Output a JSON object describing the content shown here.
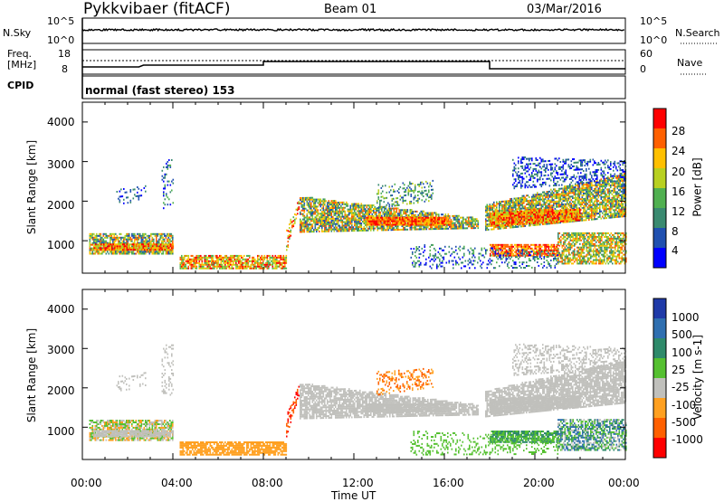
{
  "header": {
    "radar": "Pykkvibaer (fitACF)",
    "beam": "Beam 01",
    "date": "03/Mar/2016"
  },
  "noise_panel": {
    "left_label": "N.Sky",
    "left_ticks": [
      "10^5",
      "10^0"
    ],
    "right_label": "N.Search",
    "right_ticks": [
      "10^5",
      "10^0"
    ]
  },
  "freq_panel": {
    "left_label_1": "Freq.",
    "left_label_2": "[MHz]",
    "left_ticks": [
      "18",
      "8"
    ],
    "right_label": "Nave",
    "right_ticks": [
      "60",
      "0"
    ],
    "cpid_label": "CPID",
    "cpid_text": "normal (fast stereo) 153"
  },
  "chart_data": [
    {
      "type": "heatmap",
      "name": "power",
      "ylabel": "Slant Range [km]",
      "yticks": [
        "4000",
        "3000",
        "2000",
        "1000"
      ],
      "ylim": [
        180,
        4500
      ],
      "colorbar_label": "Power [dB]",
      "colorbar_ticks": [
        "28",
        "24",
        "20",
        "16",
        "12",
        "8",
        "4"
      ],
      "colors": [
        "#0000ff",
        "#2050b0",
        "#3a8a70",
        "#50b050",
        "#b8d020",
        "#ffc000",
        "#ff6000",
        "#ff0000"
      ]
    },
    {
      "type": "heatmap",
      "name": "velocity",
      "ylabel": "Slant Range [km]",
      "yticks": [
        "4000",
        "3000",
        "2000",
        "1000"
      ],
      "ylim": [
        180,
        4500
      ],
      "colorbar_label": "Velocity [m s-1]",
      "colorbar_ticks": [
        "1000",
        "500",
        "100",
        "25",
        "-25",
        "-100",
        "-500",
        "-1000"
      ],
      "colors": [
        "#1f3aa8",
        "#2f6fb0",
        "#2e8a6a",
        "#55c030",
        "#c0c0bc",
        "#ffa020",
        "#ff6000",
        "#ff0000"
      ]
    }
  ],
  "xaxis": {
    "ticks": [
      "00:00",
      "04:00",
      "08:00",
      "12:00",
      "16:00",
      "20:00",
      "00:00"
    ],
    "label": "Time UT",
    "range_hours": [
      0,
      24
    ]
  }
}
